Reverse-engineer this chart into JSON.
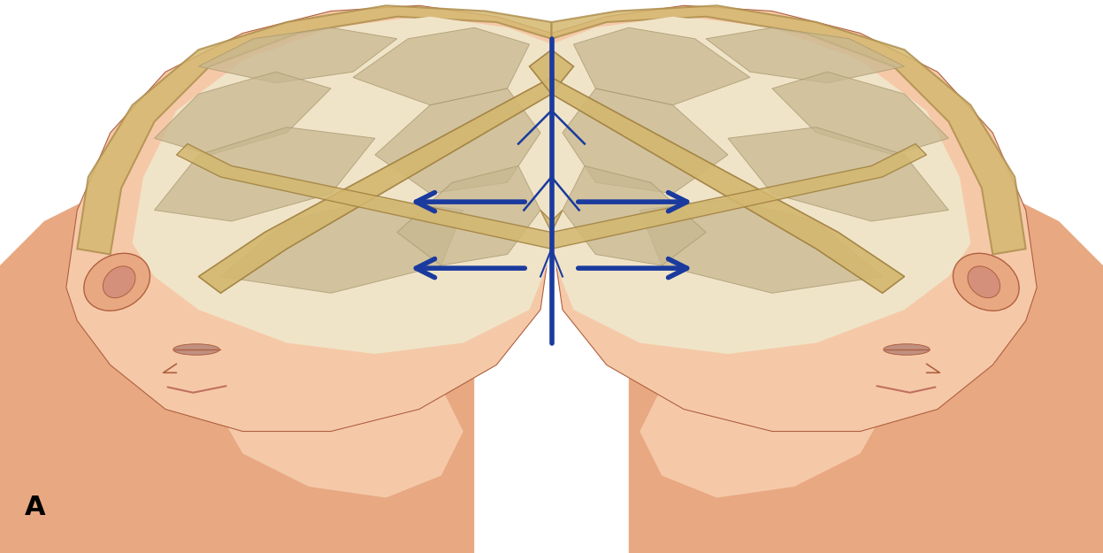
{
  "figure_label": "A",
  "label_fontsize": 22,
  "label_fontweight": "bold",
  "background_color": "#ffffff",
  "figsize": [
    12.47,
    6.25
  ],
  "dpi": 100,
  "arrow_color": "#1a3a9e",
  "skin_color_light": "#f5c9a8",
  "skin_color_mid": "#e8a882",
  "skin_color_dark": "#c87a55",
  "skin_color_shadow": "#b06040",
  "brain_color_light": "#f0e4c8",
  "brain_color_mid": "#e8d8b0",
  "brain_color_dark": "#d4c498",
  "skull_color": "#d4b870",
  "skull_color_dark": "#b09050",
  "dura_color": "#d4b870",
  "vein_color": "#1a3a9e",
  "fold_color": "#c8b890",
  "fold_edge": "#a89870"
}
